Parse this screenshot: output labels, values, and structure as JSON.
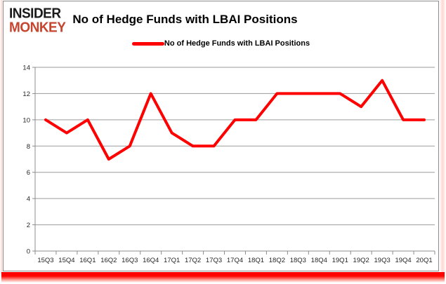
{
  "widget": {
    "logo": {
      "line1": "INSIDER",
      "line2": "MONKEY",
      "line1_color": "#1a1a1a",
      "line2_color": "#c7442e"
    },
    "title": "No of Hedge Funds with LBAI Positions",
    "legend": {
      "label": "No of Hedge Funds with LBAI Positions",
      "marker_color": "#ff0000"
    }
  },
  "chart_data": {
    "type": "line",
    "title": "No of Hedge Funds with LBAI Positions",
    "categories": [
      "15Q3",
      "15Q4",
      "16Q1",
      "16Q2",
      "16Q3",
      "16Q4",
      "17Q1",
      "17Q2",
      "17Q3",
      "17Q4",
      "18Q1",
      "18Q2",
      "18Q3",
      "18Q4",
      "19Q1",
      "19Q2",
      "19Q3",
      "19Q4",
      "20Q1"
    ],
    "series": [
      {
        "name": "No of Hedge Funds with LBAI Positions",
        "values": [
          10,
          9,
          10,
          7,
          8,
          12,
          9,
          8,
          8,
          10,
          10,
          12,
          12,
          12,
          12,
          11,
          13,
          10,
          10
        ]
      }
    ],
    "xlabel": "",
    "ylabel": "",
    "ylim": [
      0,
      14
    ],
    "ytick_step": 2,
    "grid": true,
    "legend_position": "top-center",
    "colors": {
      "line": "#ff0000",
      "grid": "#9b9b9b",
      "axis": "#8c8c8c",
      "tick_label": "#262626"
    }
  }
}
